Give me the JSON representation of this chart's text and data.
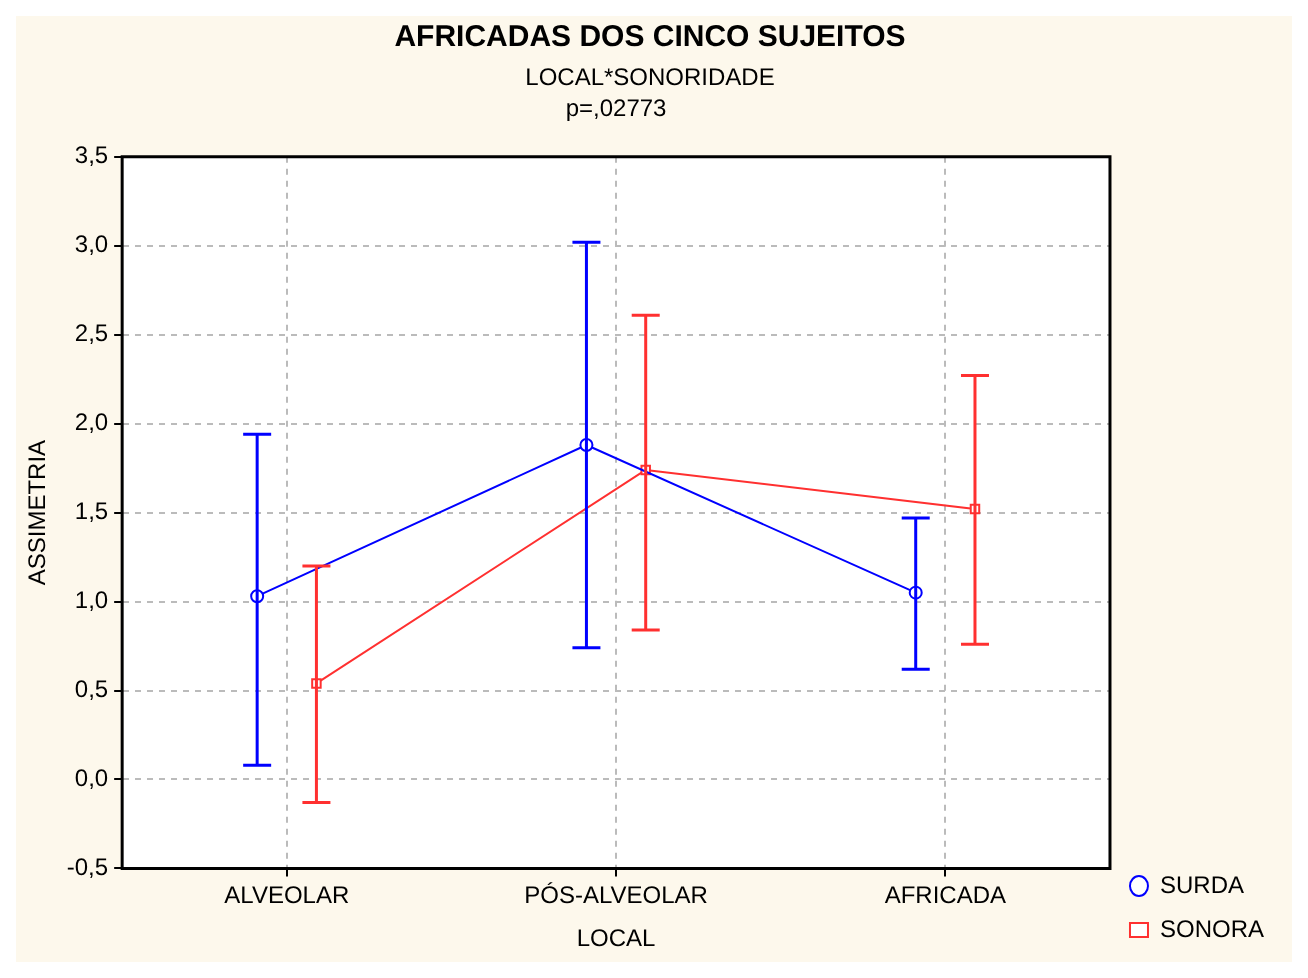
{
  "chart_data": {
    "type": "line",
    "title": "AFRICADAS DOS CINCO SUJEITOS",
    "subtitle": "LOCAL*SONORIDADE",
    "annotations": [
      "p=,02773"
    ],
    "xlabel": "LOCAL",
    "ylabel": "ASSIMETRIA",
    "categories": [
      "ALVEOLAR",
      "PÓS-ALVEOLAR",
      "AFRICADA"
    ],
    "series": [
      {
        "name": "SURDA",
        "color": "#0000ff",
        "marker": "circle",
        "values": [
          1.03,
          1.88,
          1.05
        ],
        "errors": [
          [
            0.08,
            1.94
          ],
          [
            0.74,
            3.02
          ],
          [
            0.62,
            1.47
          ]
        ]
      },
      {
        "name": "SONORA",
        "color": "#ff3030",
        "marker": "square",
        "values": [
          0.54,
          1.74,
          1.52
        ],
        "errors": [
          [
            -0.13,
            1.2
          ],
          [
            0.84,
            2.61
          ],
          [
            0.76,
            2.27
          ]
        ]
      }
    ],
    "ylim": [
      -0.5,
      3.5
    ],
    "yticks": [
      {
        "value": -0.5,
        "label": "-0,5"
      },
      {
        "value": 0,
        "label": "0,0"
      },
      {
        "value": 0.5,
        "label": "0,5"
      },
      {
        "value": 1,
        "label": "1,0"
      },
      {
        "value": 1.5,
        "label": "1,5"
      },
      {
        "value": 2,
        "label": "2,0"
      },
      {
        "value": 2.5,
        "label": "2,5"
      },
      {
        "value": 3,
        "label": "3,0"
      },
      {
        "value": 3.5,
        "label": "3,5"
      }
    ],
    "grid": true,
    "legend": "bottom right",
    "line_style": "solid"
  }
}
